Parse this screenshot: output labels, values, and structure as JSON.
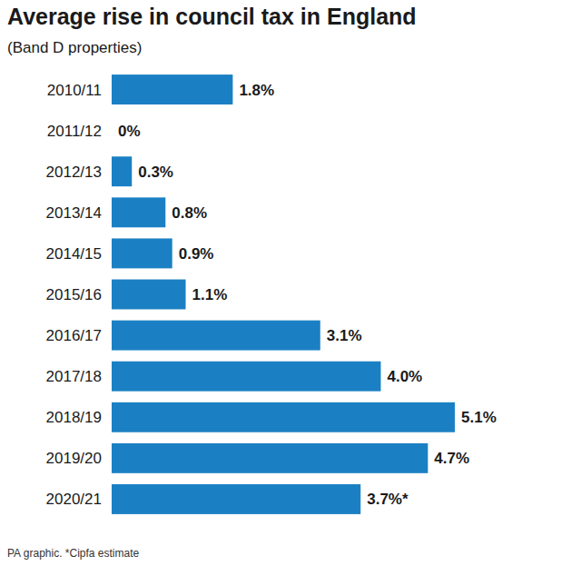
{
  "chart_data": {
    "type": "bar",
    "title": "Average rise in council tax in England",
    "subtitle": "(Band D properties)",
    "footnote": "PA graphic. *Cipfa estimate",
    "orientation": "horizontal",
    "categories": [
      "2010/11",
      "2011/12",
      "2012/13",
      "2013/14",
      "2014/15",
      "2015/16",
      "2016/17",
      "2017/18",
      "2018/19",
      "2019/20",
      "2020/21"
    ],
    "values": [
      1.8,
      0,
      0.3,
      0.8,
      0.9,
      1.1,
      3.1,
      4.0,
      5.1,
      4.7,
      3.7
    ],
    "value_labels": [
      "1.8%",
      "0%",
      "0.3%",
      "0.8%",
      "0.9%",
      "1.1%",
      "3.1%",
      "4.0%",
      "5.1%",
      "4.7%",
      "3.7%*"
    ],
    "color": "#1b80c3",
    "xlim": [
      0,
      5.1
    ],
    "data_labels": true,
    "tick_labels": "y",
    "grid": false
  }
}
